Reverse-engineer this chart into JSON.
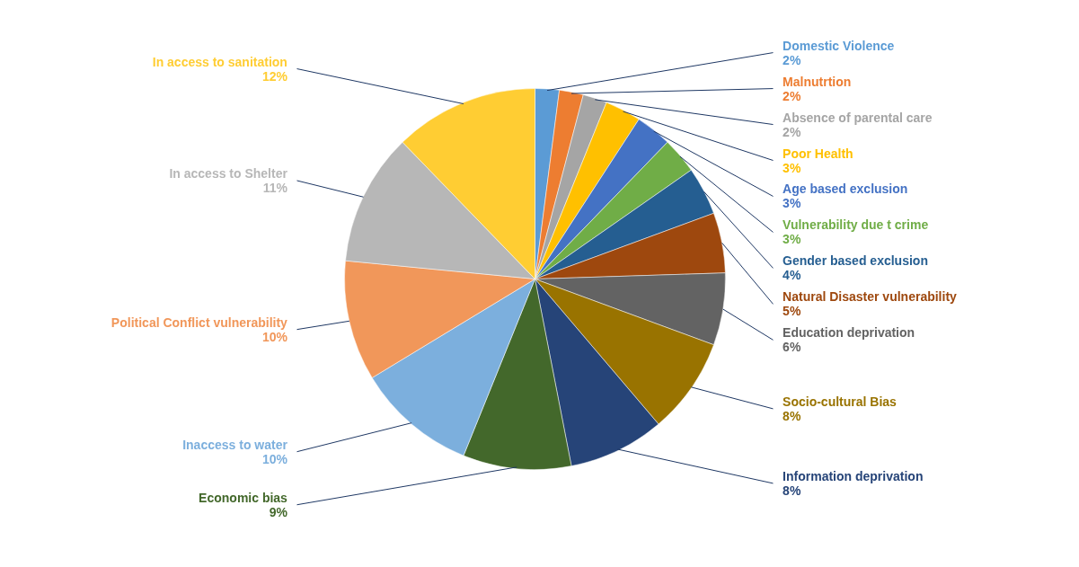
{
  "chart_data": {
    "type": "pie",
    "categories": [
      "Domestic Violence",
      "Malnutrtion",
      "Absence of parental care",
      "Poor Health",
      "Age based exclusion",
      "Vulnerability due t crime",
      "Gender based exclusion",
      "Natural Disaster vulnerability",
      "Education deprivation",
      "Socio-cultural Bias",
      "Information deprivation",
      "Economic bias",
      "Inaccess to water",
      "Political Conflict vulnerability",
      "In access to Shelter",
      "In access to sanitation"
    ],
    "values": [
      2,
      2,
      2,
      3,
      3,
      3,
      4,
      5,
      6,
      8,
      8,
      9,
      10,
      10,
      11,
      12
    ],
    "value_labels": [
      "2%",
      "2%",
      "2%",
      "3%",
      "3%",
      "3%",
      "4%",
      "5%",
      "6%",
      "8%",
      "8%",
      "9%",
      "10%",
      "10%",
      "11%",
      "12%"
    ],
    "colors": [
      "#5b9bd5",
      "#ed7d31",
      "#a5a5a5",
      "#ffc000",
      "#4472c4",
      "#70ad47",
      "#255e91",
      "#9e480e",
      "#636363",
      "#997300",
      "#264478",
      "#43682b",
      "#7cafdd",
      "#f1975a",
      "#b7b7b7",
      "#ffcd33"
    ]
  }
}
